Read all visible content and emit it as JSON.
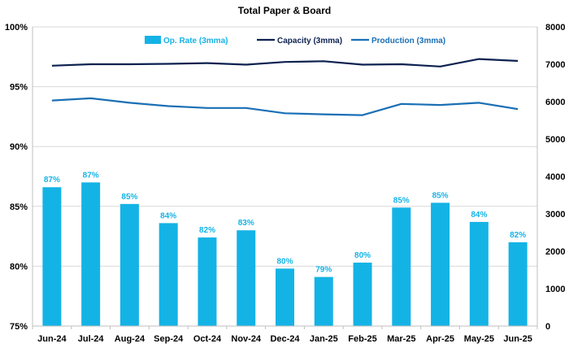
{
  "chart_data": {
    "type": "bar",
    "title": "Total Paper & Board",
    "categories": [
      "Jun-24",
      "Jul-24",
      "Aug-24",
      "Sep-24",
      "Oct-24",
      "Nov-24",
      "Dec-24",
      "Jan-25",
      "Feb-25",
      "Mar-25",
      "Apr-25",
      "May-25",
      "Jun-25"
    ],
    "left_axis": {
      "min": 75,
      "max": 100,
      "ticks": [
        "75%",
        "80%",
        "85%",
        "90%",
        "95%",
        "100%"
      ],
      "tick_values": [
        75,
        80,
        85,
        90,
        95,
        100
      ]
    },
    "right_axis": {
      "min": 0,
      "max": 8000,
      "ticks": [
        "0",
        "1000",
        "2000",
        "3000",
        "4000",
        "5000",
        "6000",
        "7000",
        "8000"
      ],
      "tick_values": [
        0,
        1000,
        2000,
        3000,
        4000,
        5000,
        6000,
        7000,
        8000
      ]
    },
    "series": [
      {
        "name": "Op. Rate (3mma)",
        "type": "bar",
        "axis": "left",
        "color": "#14b3e6",
        "values": [
          86.6,
          87.0,
          85.2,
          83.6,
          82.4,
          83.0,
          79.8,
          79.1,
          80.3,
          84.9,
          85.3,
          83.7,
          82.0
        ],
        "labels": [
          "87%",
          "87%",
          "85%",
          "84%",
          "82%",
          "83%",
          "80%",
          "79%",
          "80%",
          "85%",
          "85%",
          "84%",
          "82%"
        ]
      },
      {
        "name": "Capacity (3mma)",
        "type": "line",
        "axis": "right",
        "color": "#0c2150",
        "values": [
          6960,
          7000,
          7000,
          7010,
          7030,
          6990,
          7060,
          7080,
          6990,
          7000,
          6940,
          7140,
          7090
        ]
      },
      {
        "name": "Production (3mma)",
        "type": "line",
        "axis": "right",
        "color": "#1a6fb5",
        "values": [
          6030,
          6090,
          5970,
          5880,
          5830,
          5830,
          5690,
          5660,
          5640,
          5940,
          5910,
          5970,
          5800
        ]
      }
    ],
    "legend": {
      "position": "top-center"
    },
    "grid": true
  }
}
